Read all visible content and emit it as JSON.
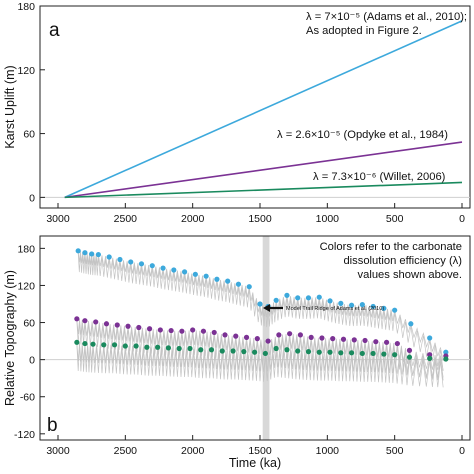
{
  "chart_data": [
    {
      "panel_label": "a",
      "type": "line",
      "xlabel": "",
      "ylabel": "Karst Uplift (m)",
      "xlim": [
        3000,
        0
      ],
      "ylim": [
        -10,
        180
      ],
      "x_ticks": [
        "3000",
        "2500",
        "2000",
        "1500",
        "1000",
        "500",
        "0"
      ],
      "y_ticks": [
        "0",
        "60",
        "120",
        "180"
      ],
      "series": [
        {
          "name": "λ = 7×10⁻⁵ (Adams et al., 2010); As adopted in Figure 2.",
          "color": "#3da9dc",
          "x": [
            2950,
            0
          ],
          "y": [
            0,
            166
          ]
        },
        {
          "name": "λ = 2.6×10⁻⁵ (Opdyke et al., 1984)",
          "color": "#7b3294",
          "x": [
            2950,
            0
          ],
          "y": [
            0,
            52
          ]
        },
        {
          "name": "λ = 7.3×10⁻⁶ (Willet, 2006)",
          "color": "#1a8a5e",
          "x": [
            2950,
            0
          ],
          "y": [
            0,
            14
          ]
        }
      ],
      "annotations": [
        "λ = 7×10⁻⁵ (Adams et al., 2010);",
        "As adopted in Figure 2.",
        "λ = 2.6×10⁻⁵ (Opdyke et al., 1984)",
        "λ = 7.3×10⁻⁶ (Willet, 2006)"
      ]
    },
    {
      "panel_label": "b",
      "type": "scatter",
      "xlabel": "Time (ka)",
      "ylabel": "Relative Topography (m)",
      "xlim": [
        3000,
        0
      ],
      "ylim": [
        -130,
        200
      ],
      "x_ticks": [
        "3000",
        "2500",
        "2000",
        "1500",
        "1000",
        "500",
        "0"
      ],
      "y_ticks": [
        "180",
        "120",
        "60",
        "0",
        "-60",
        "-120"
      ],
      "highlight_band": {
        "x0": 1480,
        "x1": 1430,
        "label": "Model Trail Ridge of Adams et al. (2010)"
      },
      "note": [
        "Colors refer to the carbonate",
        "dissolution efficiency (λ)",
        "values shown above."
      ],
      "series": [
        {
          "name": "λ = 7×10⁻⁵",
          "color": "#3da9dc",
          "x": [
            2850,
            2800,
            2750,
            2700,
            2620,
            2540,
            2460,
            2380,
            2300,
            2220,
            2140,
            2060,
            1980,
            1900,
            1820,
            1740,
            1660,
            1580,
            1500,
            1440,
            1380,
            1300,
            1220,
            1140,
            1060,
            980,
            900,
            820,
            740,
            660,
            580,
            500,
            380,
            240,
            120
          ],
          "y": [
            176,
            173,
            171,
            170,
            166,
            162,
            158,
            155,
            152,
            148,
            145,
            142,
            138,
            135,
            130,
            127,
            122,
            118,
            90,
            86,
            96,
            104,
            100,
            100,
            101,
            95,
            91,
            88,
            89,
            86,
            83,
            80,
            58,
            35,
            12
          ]
        },
        {
          "name": "λ = 2.6×10⁻⁵",
          "color": "#7b3294",
          "x": [
            2860,
            2800,
            2720,
            2640,
            2560,
            2480,
            2400,
            2320,
            2240,
            2160,
            2080,
            2000,
            1920,
            1840,
            1760,
            1680,
            1600,
            1520,
            1440,
            1360,
            1280,
            1200,
            1120,
            1040,
            960,
            880,
            800,
            720,
            640,
            560,
            480,
            390,
            240,
            120
          ],
          "y": [
            66,
            63,
            61,
            58,
            56,
            54,
            52,
            50,
            48,
            47,
            46,
            48,
            46,
            44,
            40,
            38,
            36,
            34,
            30,
            40,
            42,
            40,
            36,
            35,
            34,
            33,
            32,
            31,
            29,
            28,
            26,
            15,
            8,
            6
          ]
        },
        {
          "name": "λ = 7.3×10⁻⁶",
          "color": "#1a8a5e",
          "x": [
            2860,
            2800,
            2740,
            2660,
            2580,
            2500,
            2420,
            2340,
            2260,
            2180,
            2100,
            2020,
            1940,
            1860,
            1780,
            1700,
            1620,
            1540,
            1460,
            1380,
            1300,
            1220,
            1140,
            1060,
            980,
            900,
            820,
            740,
            660,
            580,
            500,
            390,
            240,
            120
          ],
          "y": [
            28,
            26,
            25,
            24,
            24,
            22,
            22,
            20,
            20,
            19,
            18,
            18,
            16,
            16,
            14,
            14,
            13,
            12,
            10,
            18,
            16,
            14,
            13,
            12,
            12,
            11,
            11,
            10,
            10,
            9,
            8,
            4,
            2,
            1
          ]
        }
      ]
    }
  ]
}
